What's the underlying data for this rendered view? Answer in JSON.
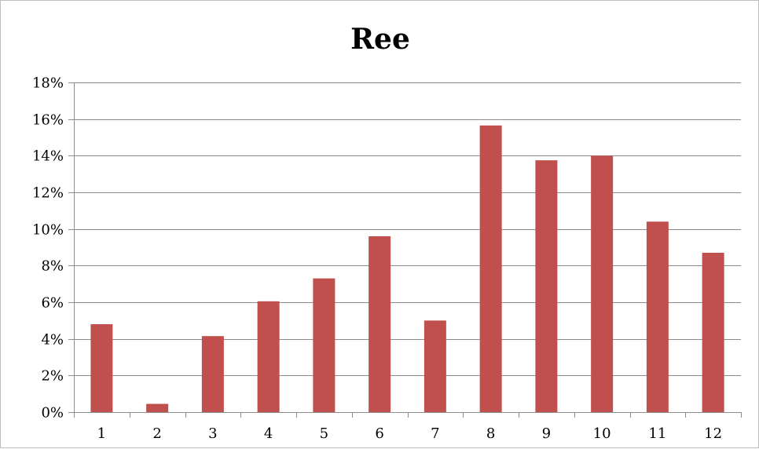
{
  "chart_data": {
    "type": "bar",
    "title": "Ree",
    "categories": [
      "1",
      "2",
      "3",
      "4",
      "5",
      "6",
      "7",
      "8",
      "9",
      "10",
      "11",
      "12"
    ],
    "series": [
      {
        "values": [
          4.8,
          0.45,
          4.15,
          6.05,
          7.3,
          9.6,
          5.0,
          15.65,
          13.75,
          14.0,
          10.4,
          8.7
        ],
        "color": "#c0504d"
      }
    ],
    "ylim": [
      0,
      18
    ],
    "yticks": [
      0,
      2,
      4,
      6,
      8,
      10,
      12,
      14,
      16,
      18
    ],
    "ytick_format": "percent",
    "grid": true,
    "gridline_color": "#8c8c8c",
    "legend": "none"
  }
}
